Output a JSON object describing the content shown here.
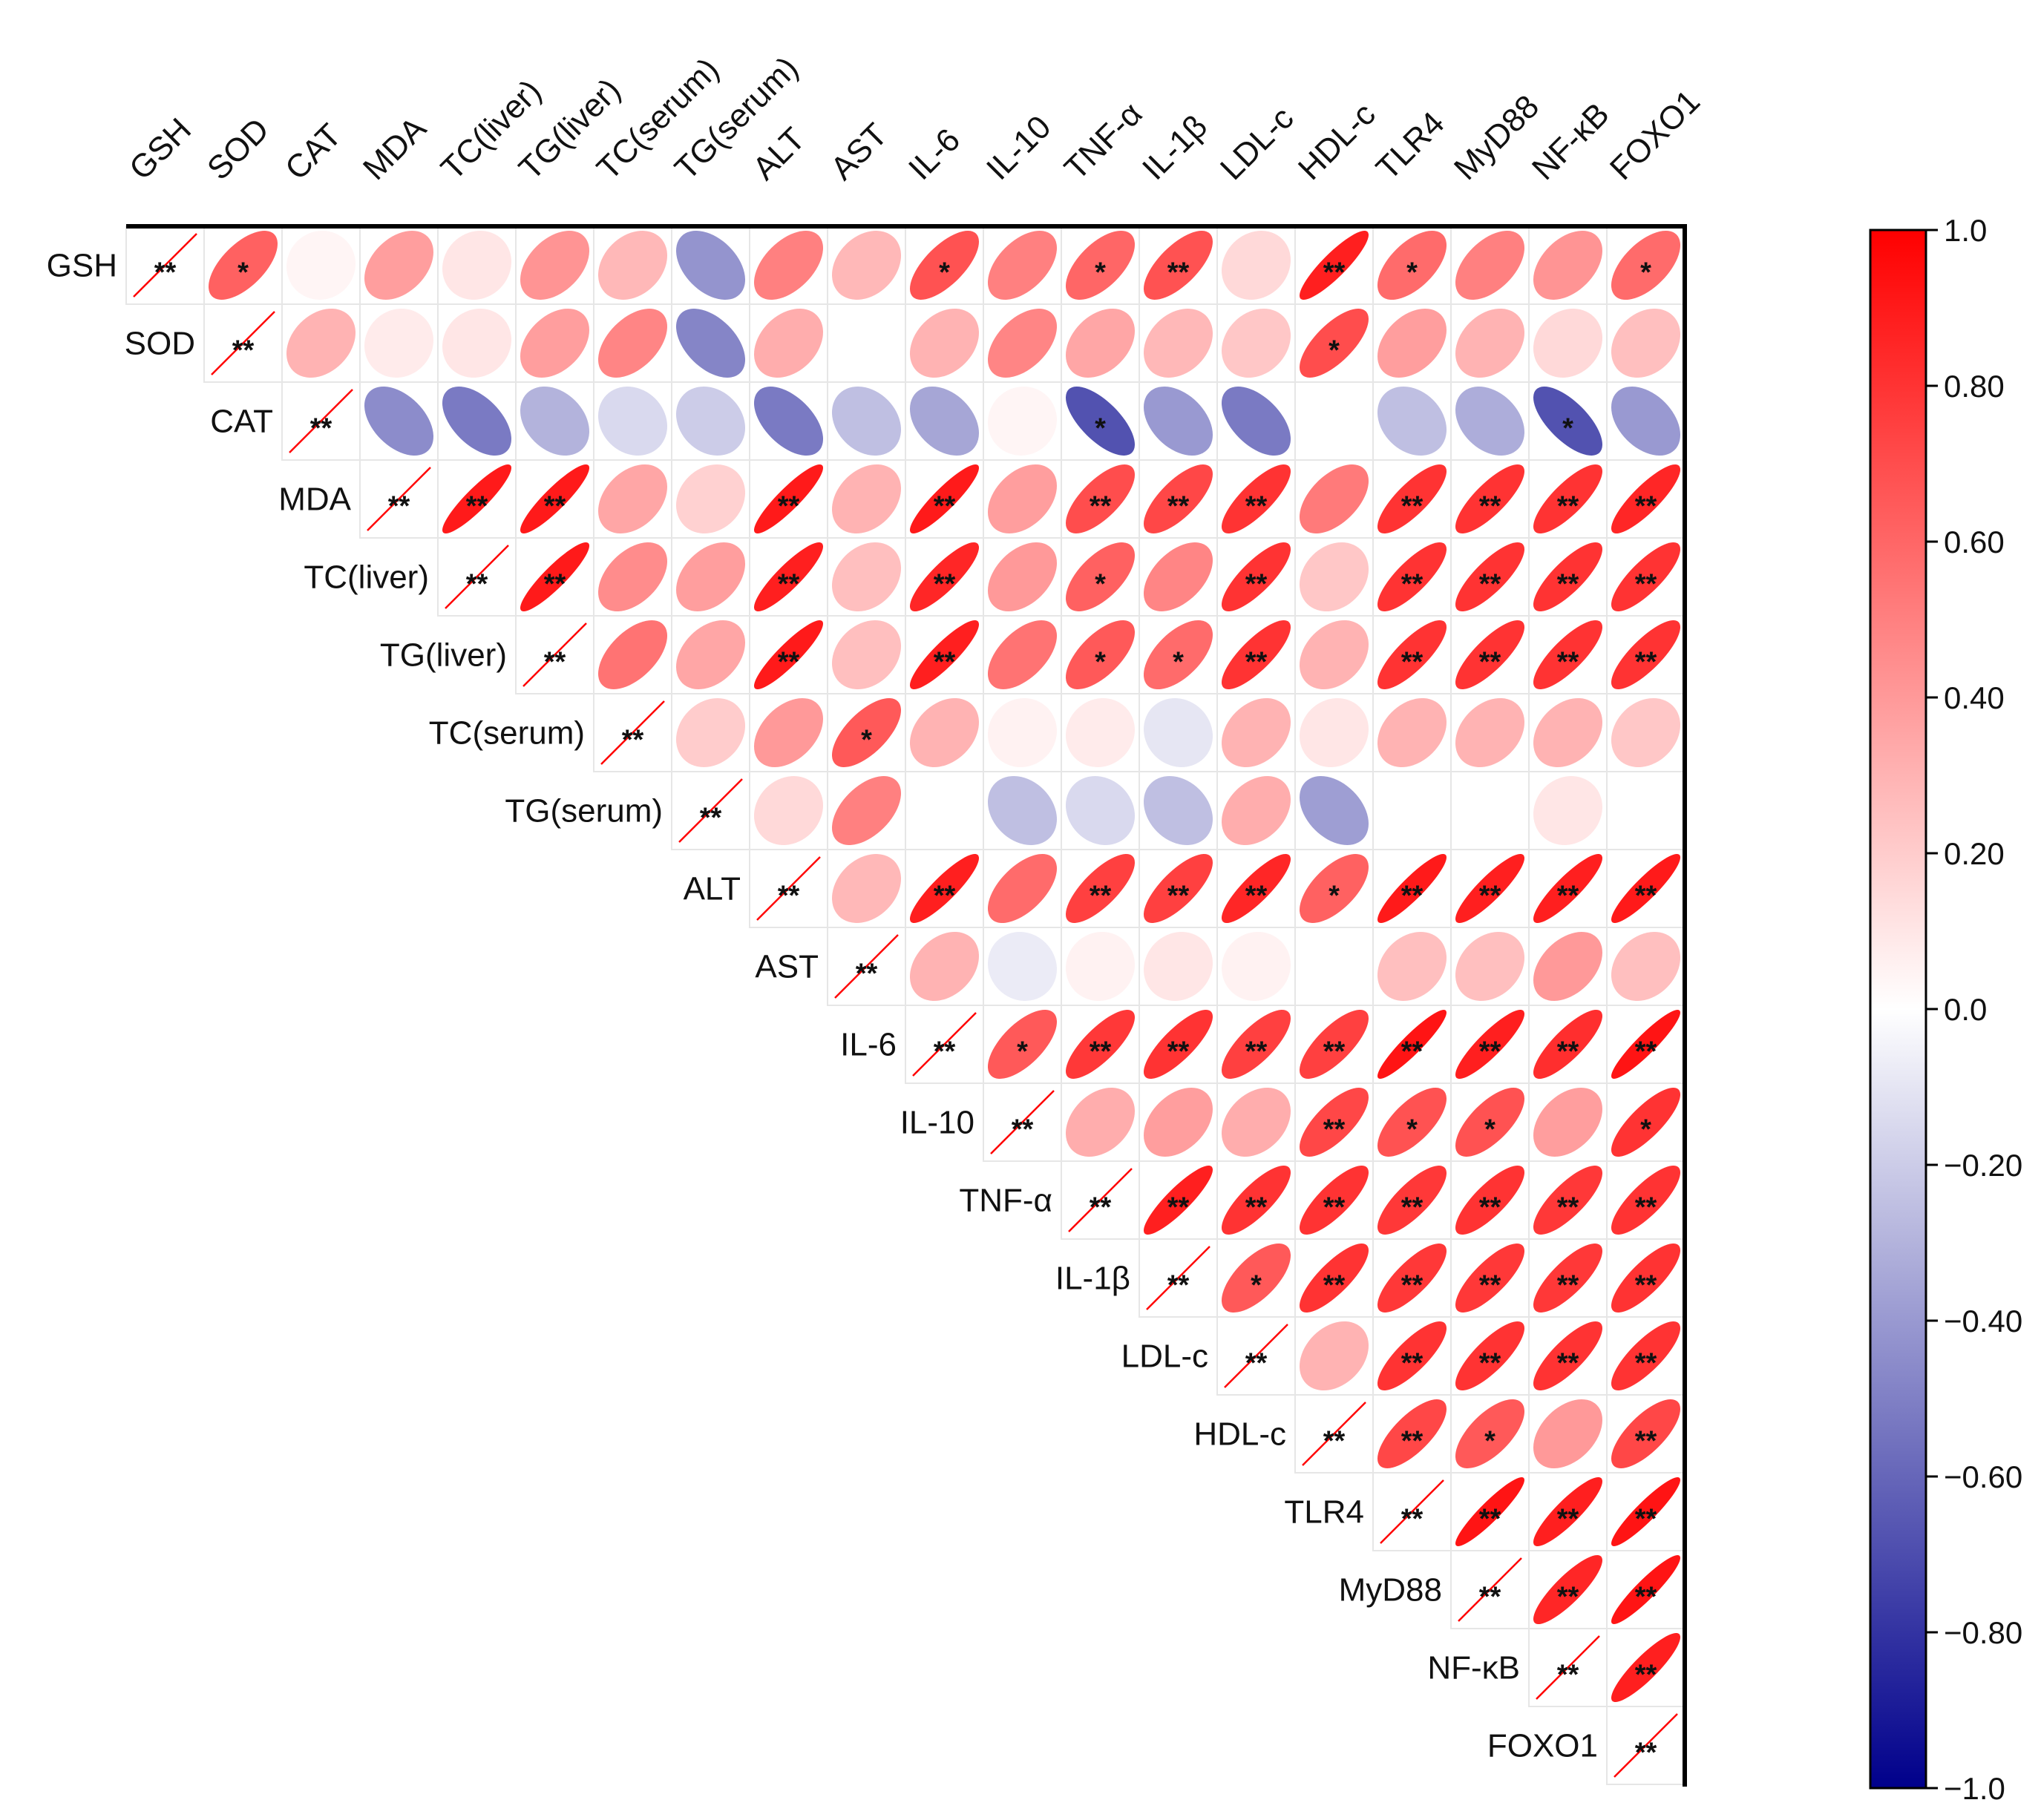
{
  "chart_data": {
    "type": "heatmap",
    "subtype": "upper-triangle correlation matrix, ellipse glyphs",
    "variables": [
      "GSH",
      "SOD",
      "CAT",
      "MDA",
      "TC(liver)",
      "TG(liver)",
      "TC(serum)",
      "TG(serum)",
      "ALT",
      "AST",
      "IL-6",
      "IL-10",
      "TNF-α",
      "IL-1β",
      "LDL-c",
      "HDL-c",
      "TLR4",
      "MyD88",
      "NF-κB",
      "FOXO1"
    ],
    "diagonal_value": 1.0,
    "diagonal_mark": "**",
    "upper": [
      [
        0.62,
        0.04,
        0.38,
        0.1,
        0.42,
        0.28,
        -0.42,
        0.5,
        0.28,
        0.68,
        0.5,
        0.6,
        0.68,
        0.15,
        0.88,
        0.58,
        0.5,
        0.42,
        0.58
      ],
      [
        0.3,
        0.08,
        0.1,
        0.38,
        0.48,
        -0.48,
        0.32,
        0.0,
        0.3,
        0.48,
        0.35,
        0.28,
        0.22,
        0.7,
        0.38,
        0.3,
        0.15,
        0.25
      ],
      [
        -0.45,
        -0.52,
        -0.3,
        -0.15,
        -0.2,
        -0.52,
        -0.25,
        -0.35,
        0.04,
        -0.68,
        -0.4,
        -0.52,
        0.0,
        -0.25,
        -0.32,
        -0.68,
        -0.4
      ],
      [
        0.9,
        0.9,
        0.35,
        0.18,
        0.9,
        0.3,
        0.9,
        0.38,
        0.7,
        0.72,
        0.8,
        0.52,
        0.8,
        0.8,
        0.8,
        0.85
      ],
      [
        0.9,
        0.45,
        0.38,
        0.88,
        0.25,
        0.85,
        0.4,
        0.62,
        0.48,
        0.8,
        0.22,
        0.8,
        0.8,
        0.8,
        0.8
      ],
      [
        0.55,
        0.35,
        0.9,
        0.25,
        0.88,
        0.55,
        0.65,
        0.58,
        0.8,
        0.3,
        0.8,
        0.8,
        0.8,
        0.8
      ],
      [
        0.2,
        0.4,
        0.65,
        0.3,
        0.05,
        0.08,
        -0.1,
        0.3,
        0.1,
        0.3,
        0.3,
        0.3,
        0.22
      ],
      [
        0.15,
        0.5,
        0.0,
        -0.25,
        -0.15,
        -0.25,
        0.32,
        -0.38,
        0.0,
        0.0,
        0.1,
        0.0
      ],
      [
        0.28,
        0.88,
        0.58,
        0.75,
        0.75,
        0.85,
        0.62,
        0.9,
        0.88,
        0.88,
        0.9
      ],
      [
        0.3,
        -0.08,
        0.05,
        0.1,
        0.05,
        0.0,
        0.25,
        0.25,
        0.4,
        0.25
      ],
      [
        0.65,
        0.78,
        0.8,
        0.75,
        0.75,
        0.92,
        0.88,
        0.82,
        0.92
      ],
      [
        0.32,
        0.38,
        0.32,
        0.72,
        0.68,
        0.68,
        0.38,
        0.8
      ],
      [
        0.88,
        0.8,
        0.8,
        0.78,
        0.8,
        0.78,
        0.8
      ],
      [
        0.65,
        0.8,
        0.78,
        0.78,
        0.78,
        0.8
      ],
      [
        0.3,
        0.8,
        0.8,
        0.8,
        0.8
      ],
      [
        0.72,
        0.65,
        0.4,
        0.72
      ],
      [
        0.92,
        0.88,
        0.92
      ],
      [
        0.85,
        0.92
      ],
      [
        0.88
      ]
    ],
    "significance_upper": [
      [
        "*",
        "",
        "",
        "",
        "",
        "",
        "",
        "",
        "",
        "*",
        "",
        "*",
        "**",
        "",
        "**",
        "*",
        "",
        "",
        "*"
      ],
      [
        "",
        "",
        "",
        "",
        "",
        "",
        "",
        "",
        "",
        "",
        "",
        "",
        "",
        "*",
        "",
        "",
        "",
        ""
      ],
      [
        "",
        "",
        "",
        "",
        "",
        "",
        "",
        "",
        "",
        "*",
        "",
        "",
        "",
        "",
        "",
        "*",
        ""
      ],
      [
        "**",
        "**",
        "",
        "",
        "**",
        "",
        "**",
        "",
        "**",
        "**",
        "**",
        "",
        "**",
        "**",
        "**",
        "**"
      ],
      [
        "**",
        "",
        "",
        "**",
        "",
        "**",
        "",
        "*",
        "",
        "**",
        "",
        "**",
        "**",
        "**",
        "**"
      ],
      [
        "",
        "",
        "**",
        "",
        "**",
        "",
        "*",
        "*",
        "**",
        "",
        "**",
        "**",
        "**",
        "**"
      ],
      [
        "",
        "",
        "*",
        "",
        "",
        "",
        "",
        "",
        "",
        "",
        "",
        "",
        ""
      ],
      [
        "",
        "",
        "",
        "",
        "",
        "",
        "",
        "",
        "",
        "",
        "",
        ""
      ],
      [
        "",
        "**",
        "",
        "**",
        "**",
        "**",
        "*",
        "**",
        "**",
        "**",
        "**"
      ],
      [
        "",
        "",
        "",
        "",
        "",
        "",
        "",
        "",
        "",
        ""
      ],
      [
        "*",
        "**",
        "**",
        "**",
        "**",
        "**",
        "**",
        "**",
        "**"
      ],
      [
        "",
        "",
        "",
        "**",
        "*",
        "*",
        "",
        "*"
      ],
      [
        "**",
        "**",
        "**",
        "**",
        "**",
        "**",
        "**"
      ],
      [
        "*",
        "**",
        "**",
        "**",
        "**",
        "**"
      ],
      [
        "",
        "**",
        "**",
        "**",
        "**"
      ],
      [
        "**",
        "*",
        "",
        "**"
      ],
      [
        "**",
        "**",
        "**"
      ],
      [
        "**",
        "**"
      ],
      [
        "**"
      ]
    ],
    "colorbar": {
      "range": [
        -1.0,
        1.0
      ],
      "ticks": [
        "1.0",
        "0.80",
        "0.60",
        "0.40",
        "0.20",
        "0.0",
        "−0.20",
        "−0.40",
        "−0.60",
        "−0.80",
        "−1.0"
      ],
      "low_color": "#00008B",
      "mid_color": "#FFFFFF",
      "high_color": "#FF0000",
      "placement": "right"
    },
    "title": "",
    "xlabel": "",
    "ylabel": ""
  }
}
